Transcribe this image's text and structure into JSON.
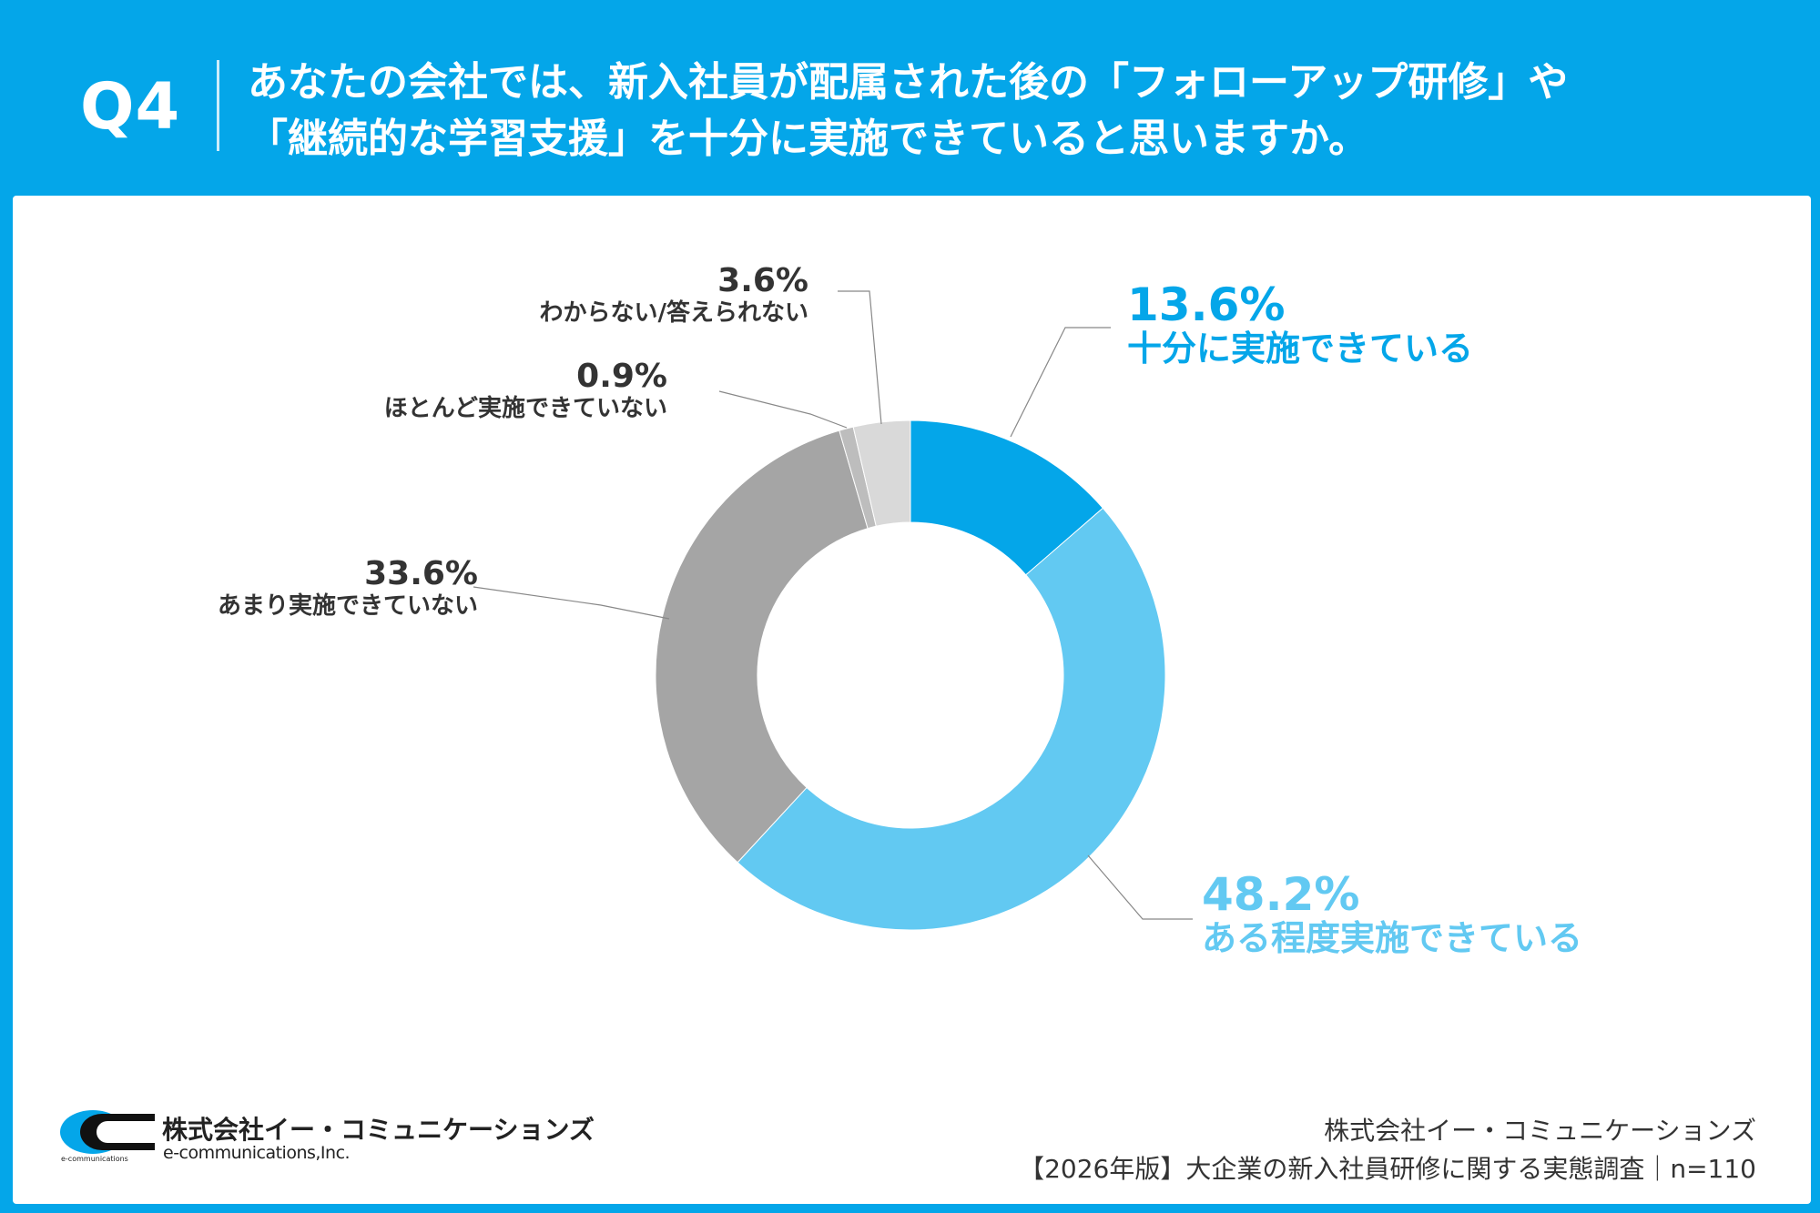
{
  "header": {
    "q_label": "Q4",
    "question_line1": "あなたの会社では、新入社員が配属された後の「フォローアップ研修」や",
    "question_line2": "「継続的な学習支援」を十分に実施できていると思いますか。"
  },
  "chart_data": {
    "type": "pie",
    "style": "donut",
    "slices": [
      {
        "label": "十分に実施できている",
        "value": 13.6,
        "value_label": "13.6%",
        "color": "#04a6e9"
      },
      {
        "label": "ある程度実施できている",
        "value": 48.2,
        "value_label": "48.2%",
        "color": "#62c9f2"
      },
      {
        "label": "あまり実施できていない",
        "value": 33.6,
        "value_label": "33.6%",
        "color": "#a5a5a5"
      },
      {
        "label": "ほとんど実施できていない",
        "value": 0.9,
        "value_label": "0.9%",
        "color": "#bdbdbd"
      },
      {
        "label": "わからない/答えられない",
        "value": 3.6,
        "value_label": "3.6%",
        "color": "#d9d9d9"
      }
    ],
    "label_colors": {
      "highlight": "#04a6e9",
      "highlight_light": "#62c9f2",
      "neutral": "#333333"
    }
  },
  "footer": {
    "company_jp": "株式会社イー・コミュニケーションズ",
    "company_en": "e-communications,Inc.",
    "logo_tiny": "e-communications",
    "source_line1": "株式会社イー・コミュニケーションズ",
    "source_line2": "【2026年版】大企業の新入社員研修に関する実態調査｜n=110"
  },
  "colors": {
    "brand": "#04a6e9",
    "background": "#ffffff"
  }
}
